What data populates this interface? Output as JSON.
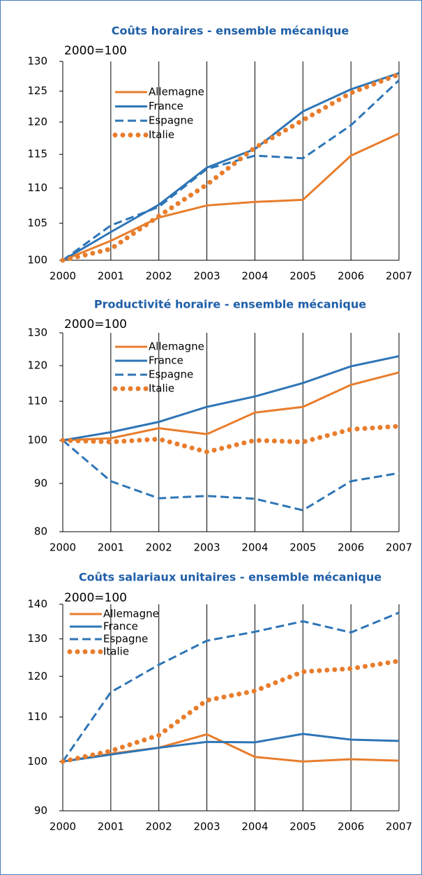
{
  "chart_data": [
    {
      "type": "line",
      "title": "Coûts horaires  - ensemble mécanique",
      "subtitle": "2000=100",
      "categories": [
        "2000",
        "2001",
        "2002",
        "2003",
        "2004",
        "2005",
        "2006",
        "2007"
      ],
      "log_scale": true,
      "ylim": [
        100,
        130
      ],
      "yticks": [
        100,
        105,
        110,
        115,
        120,
        125,
        130
      ],
      "series": [
        {
          "name": "Allemagne",
          "color": "#e87d2c",
          "style": "solid",
          "values": [
            100,
            102.6,
            105.8,
            107.5,
            108,
            108.3,
            114.8,
            118.2
          ]
        },
        {
          "name": "France",
          "color": "#2e75b6",
          "style": "solid",
          "values": [
            100,
            103.8,
            107.6,
            113,
            115.8,
            121.7,
            125.3,
            128
          ]
        },
        {
          "name": "Espagne",
          "color": "#2e75b6",
          "style": "dashed",
          "values": [
            100,
            104.7,
            107.3,
            112.8,
            114.8,
            114.4,
            119.5,
            126.8
          ]
        },
        {
          "name": "Italie",
          "color": "#e87d2c",
          "style": "dotted",
          "values": [
            100,
            101.5,
            106,
            110.5,
            116,
            120.3,
            124.7,
            127.8
          ]
        }
      ]
    },
    {
      "type": "line",
      "title": "Productivité horaire  - ensemble mécanique",
      "subtitle": "2000=100",
      "categories": [
        "2000",
        "2001",
        "2002",
        "2003",
        "2004",
        "2005",
        "2006",
        "2007"
      ],
      "log_scale": true,
      "ylim": [
        80,
        130
      ],
      "yticks": [
        80,
        90,
        100,
        110,
        120,
        130
      ],
      "series": [
        {
          "name": "Allemagne",
          "color": "#e87d2c",
          "style": "solid",
          "values": [
            100,
            100.5,
            103,
            101.5,
            107,
            108.5,
            114.5,
            118
          ]
        },
        {
          "name": "France",
          "color": "#2e75b6",
          "style": "solid",
          "values": [
            100,
            102,
            104.6,
            108.5,
            111.3,
            115,
            119.8,
            122.8
          ]
        },
        {
          "name": "Espagne",
          "color": "#2e75b6",
          "style": "dashed",
          "values": [
            100,
            90.5,
            86.8,
            87.3,
            86.7,
            84.3,
            90.5,
            92.3
          ]
        },
        {
          "name": "Italie",
          "color": "#e87d2c",
          "style": "dotted",
          "values": [
            100,
            99.6,
            100.3,
            97.2,
            100,
            99.6,
            102.7,
            103.5
          ]
        }
      ]
    },
    {
      "type": "line",
      "title": "Coûts salariaux unitaires  - ensemble mécanique",
      "subtitle": "2000=100",
      "categories": [
        "2000",
        "2001",
        "2002",
        "2003",
        "2004",
        "2005",
        "2006",
        "2007"
      ],
      "log_scale": true,
      "ylim": [
        90,
        140
      ],
      "yticks": [
        90,
        100,
        110,
        120,
        130,
        140
      ],
      "series": [
        {
          "name": "Allemagne",
          "color": "#e87d2c",
          "style": "solid",
          "values": [
            100,
            101.7,
            103,
            106,
            101,
            100,
            100.5,
            100.2
          ]
        },
        {
          "name": "France",
          "color": "#2e75b6",
          "style": "solid",
          "values": [
            100,
            101.5,
            103,
            104.3,
            104.2,
            106.1,
            104.8,
            104.5
          ]
        },
        {
          "name": "Espagne",
          "color": "#2e75b6",
          "style": "dashed",
          "values": [
            100,
            116,
            123,
            129.5,
            132,
            135,
            131.8,
            137.5
          ]
        },
        {
          "name": "Italie",
          "color": "#e87d2c",
          "style": "dotted",
          "values": [
            100,
            102.3,
            105.8,
            114,
            116.3,
            121.2,
            122,
            124
          ]
        }
      ]
    }
  ]
}
